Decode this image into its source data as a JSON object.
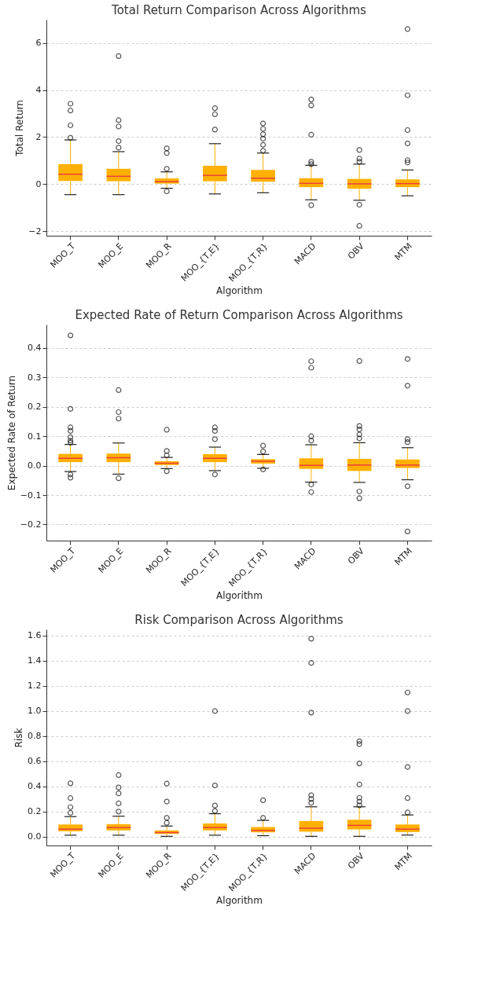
{
  "chart_data": [
    {
      "type": "box",
      "title": "Total Return Comparison Across Algorithms",
      "xlabel": "Algorithm",
      "ylabel": "Total Return",
      "categories": [
        "MOO_T",
        "MOO_E",
        "MOO_R",
        "MOO_{T,E}",
        "MOO_{T,R}",
        "MACD",
        "OBV",
        "MTM"
      ],
      "ylim": [
        -2.2,
        7
      ],
      "yticks": [
        {
          "value": -2,
          "label": "−2"
        },
        0,
        2,
        4,
        6
      ],
      "grid": "y",
      "marker": "circle",
      "series": [
        {
          "color": "#ffb000",
          "boxes": [
            {
              "low": -0.45,
              "q1": 0.13,
              "median": 0.42,
              "q3": 0.85,
              "high": 1.88,
              "outliers": [
                1.97,
                2.5,
                3.13,
                3.42
              ]
            },
            {
              "low": -0.45,
              "q1": 0.12,
              "median": 0.33,
              "q3": 0.65,
              "high": 1.38,
              "outliers": [
                1.55,
                1.83,
                2.45,
                2.72,
                5.45
              ]
            },
            {
              "low": -0.18,
              "q1": 0.02,
              "median": 0.1,
              "q3": 0.24,
              "high": 0.52,
              "outliers": [
                -0.31,
                0.65,
                1.32,
                1.52
              ]
            },
            {
              "low": -0.42,
              "q1": 0.12,
              "median": 0.37,
              "q3": 0.78,
              "high": 1.72,
              "outliers": [
                2.32,
                2.97,
                3.23
              ]
            },
            {
              "low": -0.37,
              "q1": 0.1,
              "median": 0.25,
              "q3": 0.6,
              "high": 1.32,
              "outliers": [
                1.42,
                1.67,
                1.93,
                2.12,
                2.35,
                2.58
              ]
            },
            {
              "low": -0.67,
              "q1": -0.13,
              "median": 0.03,
              "q3": 0.25,
              "high": 0.8,
              "outliers": [
                -0.9,
                0.85,
                0.95,
                2.1,
                3.35,
                3.6
              ]
            },
            {
              "low": -0.69,
              "q1": -0.2,
              "median": 0.01,
              "q3": 0.22,
              "high": 0.85,
              "outliers": [
                -1.78,
                -0.88,
                0.95,
                1.08,
                1.45
              ]
            },
            {
              "low": -0.5,
              "q1": -0.13,
              "median": 0.02,
              "q3": 0.2,
              "high": 0.6,
              "outliers": [
                0.92,
                1.02,
                1.73,
                2.3,
                3.78,
                6.6
              ]
            }
          ]
        }
      ]
    },
    {
      "type": "box",
      "title": "Expected Rate of Return Comparison Across Algorithms",
      "xlabel": "Algorithm",
      "ylabel": "Expected Rate of Return",
      "categories": [
        "MOO_T",
        "MOO_E",
        "MOO_R",
        "MOO_{T,E}",
        "MOO_{T,R}",
        "MACD",
        "OBV",
        "MTM"
      ],
      "ylim": [
        -0.255,
        0.48
      ],
      "yticks": [
        {
          "value": -0.2,
          "label": "−0.2"
        },
        {
          "value": -0.1,
          "label": "−0.1"
        },
        {
          "value": 0,
          "label": "0.0"
        },
        0.1,
        0.2,
        0.3,
        0.4
      ],
      "grid": "y",
      "marker": "circle",
      "series": [
        {
          "color": "#ffb000",
          "boxes": [
            {
              "low": -0.02,
              "q1": 0.012,
              "median": 0.025,
              "q3": 0.04,
              "high": 0.072,
              "outliers": [
                -0.041,
                -0.03,
                0.078,
                0.085,
                0.097,
                0.118,
                0.13,
                0.193,
                0.443
              ]
            },
            {
              "low": -0.029,
              "q1": 0.012,
              "median": 0.027,
              "q3": 0.041,
              "high": 0.077,
              "outliers": [
                -0.043,
                0.16,
                0.182,
                0.257
              ]
            },
            {
              "low": -0.01,
              "q1": 0.002,
              "median": 0.008,
              "q3": 0.015,
              "high": 0.028,
              "outliers": [
                -0.019,
                0.035,
                0.05,
                0.122
              ]
            },
            {
              "low": -0.017,
              "q1": 0.012,
              "median": 0.025,
              "q3": 0.039,
              "high": 0.063,
              "outliers": [
                -0.03,
                0.09,
                0.118,
                0.13
              ]
            },
            {
              "low": -0.009,
              "q1": 0.007,
              "median": 0.015,
              "q3": 0.022,
              "high": 0.038,
              "outliers": [
                -0.013,
                0.048,
                0.068
              ]
            },
            {
              "low": -0.056,
              "q1": -0.011,
              "median": 0.001,
              "q3": 0.025,
              "high": 0.071,
              "outliers": [
                -0.09,
                -0.064,
                0.085,
                0.1,
                0.333,
                0.355
              ]
            },
            {
              "low": -0.057,
              "q1": -0.018,
              "median": 0.002,
              "q3": 0.023,
              "high": 0.078,
              "outliers": [
                -0.111,
                -0.088,
                0.093,
                0.106,
                0.123,
                0.135,
                0.356
              ]
            },
            {
              "low": -0.048,
              "q1": -0.008,
              "median": 0.002,
              "q3": 0.021,
              "high": 0.061,
              "outliers": [
                -0.224,
                -0.07,
                0.08,
                0.09,
                0.272,
                0.363
              ]
            }
          ]
        }
      ]
    },
    {
      "type": "box",
      "title": "Risk Comparison Across Algorithms",
      "xlabel": "Algorithm",
      "ylabel": "Risk",
      "categories": [
        "MOO_T",
        "MOO_E",
        "MOO_R",
        "MOO_{T,E}",
        "MOO_{T,R}",
        "MACD",
        "OBV",
        "MTM"
      ],
      "ylim": [
        -0.07,
        1.65
      ],
      "yticks": [
        {
          "value": 0,
          "label": "0.0"
        },
        {
          "value": 0.2,
          "label": "0.2"
        },
        {
          "value": 0.4,
          "label": "0.4"
        },
        {
          "value": 0.6,
          "label": "0.6"
        },
        {
          "value": 0.8,
          "label": "0.8"
        },
        {
          "value": 1,
          "label": "1.0"
        },
        {
          "value": 1.2,
          "label": "1.2"
        },
        {
          "value": 1.4,
          "label": "1.4"
        },
        {
          "value": 1.6,
          "label": "1.6"
        }
      ],
      "grid": "y",
      "marker": "circle",
      "series": [
        {
          "color": "#ffb000",
          "boxes": [
            {
              "low": 0.012,
              "q1": 0.043,
              "median": 0.06,
              "q3": 0.097,
              "high": 0.16,
              "outliers": [
                0.19,
                0.235,
                0.307,
                0.425
              ]
            },
            {
              "low": 0.012,
              "q1": 0.05,
              "median": 0.073,
              "q3": 0.1,
              "high": 0.163,
              "outliers": [
                0.2,
                0.265,
                0.345,
                0.392,
                0.49
              ]
            },
            {
              "low": 0.003,
              "q1": 0.022,
              "median": 0.033,
              "q3": 0.05,
              "high": 0.085,
              "outliers": [
                0.11,
                0.15,
                0.28,
                0.423
              ]
            },
            {
              "low": 0.012,
              "q1": 0.05,
              "median": 0.073,
              "q3": 0.105,
              "high": 0.183,
              "outliers": [
                0.205,
                0.248,
                0.408,
                1.0
              ]
            },
            {
              "low": 0.008,
              "q1": 0.035,
              "median": 0.05,
              "q3": 0.077,
              "high": 0.13,
              "outliers": [
                0.15,
                0.29
              ]
            },
            {
              "low": 0.003,
              "q1": 0.04,
              "median": 0.068,
              "q3": 0.125,
              "high": 0.238,
              "outliers": [
                0.27,
                0.3,
                0.33,
                0.988,
                1.383,
                1.576
              ]
            },
            {
              "low": 0.003,
              "q1": 0.058,
              "median": 0.09,
              "q3": 0.135,
              "high": 0.238,
              "outliers": [
                0.25,
                0.28,
                0.31,
                0.415,
                0.583,
                0.737,
                0.76
              ]
            },
            {
              "low": 0.013,
              "q1": 0.037,
              "median": 0.06,
              "q3": 0.097,
              "high": 0.173,
              "outliers": [
                0.193,
                0.307,
                0.555,
                1.0,
                1.148
              ]
            }
          ]
        }
      ]
    }
  ]
}
